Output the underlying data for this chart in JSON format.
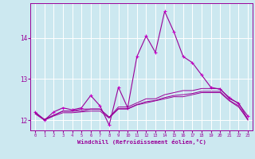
{
  "xlabel": "Windchill (Refroidissement éolien,°C)",
  "bg_color": "#cce8f0",
  "grid_color": "#ffffff",
  "line_color": "#990099",
  "marker_color": "#cc00cc",
  "xlim": [
    -0.5,
    23.5
  ],
  "ylim": [
    11.75,
    14.85
  ],
  "yticks": [
    12,
    13,
    14
  ],
  "xticks": [
    0,
    1,
    2,
    3,
    4,
    5,
    6,
    7,
    8,
    9,
    10,
    11,
    12,
    13,
    14,
    15,
    16,
    17,
    18,
    19,
    20,
    21,
    22,
    23
  ],
  "series1": [
    12.2,
    12.0,
    12.2,
    12.3,
    12.25,
    12.3,
    12.6,
    12.35,
    11.88,
    12.8,
    12.3,
    13.55,
    14.05,
    13.65,
    14.65,
    14.15,
    13.55,
    13.4,
    13.1,
    12.8,
    12.75,
    12.55,
    12.4,
    12.1
  ],
  "series2": [
    12.18,
    12.02,
    12.12,
    12.22,
    12.22,
    12.22,
    12.27,
    12.27,
    12.07,
    12.32,
    12.32,
    12.42,
    12.52,
    12.52,
    12.62,
    12.67,
    12.72,
    12.72,
    12.77,
    12.77,
    12.77,
    12.52,
    12.42,
    12.02
  ],
  "series3": [
    12.15,
    12.0,
    12.12,
    12.22,
    12.22,
    12.27,
    12.27,
    12.27,
    12.07,
    12.27,
    12.27,
    12.37,
    12.42,
    12.47,
    12.52,
    12.57,
    12.57,
    12.62,
    12.67,
    12.67,
    12.67,
    12.47,
    12.32,
    12.02
  ],
  "series4": [
    12.18,
    12.0,
    12.1,
    12.18,
    12.18,
    12.2,
    12.22,
    12.22,
    12.05,
    12.28,
    12.28,
    12.38,
    12.45,
    12.48,
    12.55,
    12.6,
    12.62,
    12.65,
    12.7,
    12.7,
    12.7,
    12.48,
    12.35,
    12.0
  ]
}
